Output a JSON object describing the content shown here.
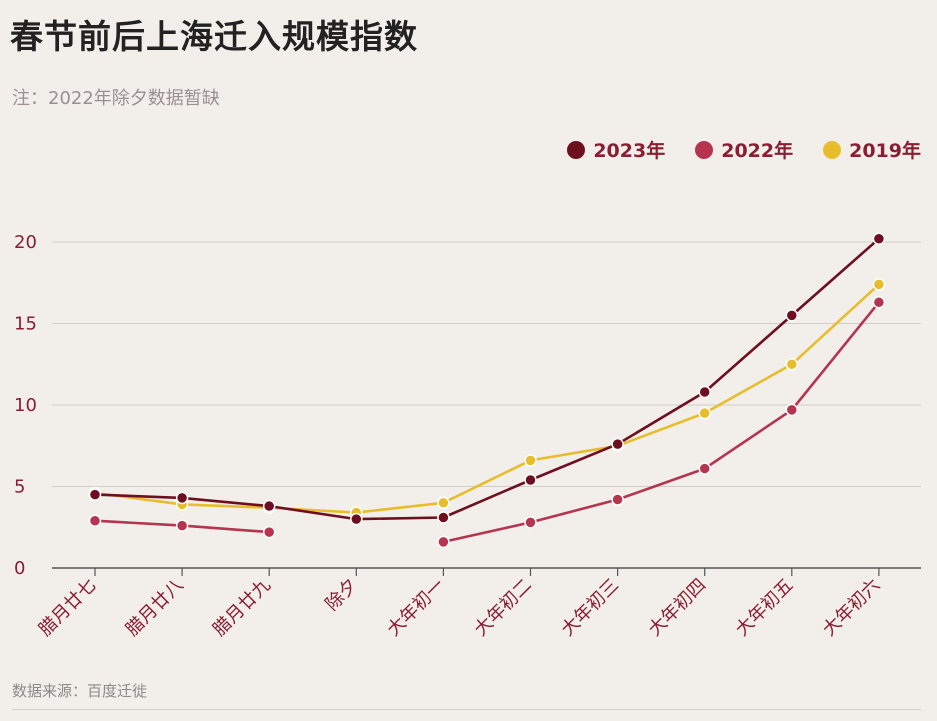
{
  "header": {
    "title": "春节前后上海迁入规模指数",
    "subtitle": "注：2022年除夕数据暂缺"
  },
  "footer": {
    "source": "数据来源：百度迁徙"
  },
  "colors": {
    "background": "#f2efeb",
    "label": "#8a1e32"
  },
  "chart_data": {
    "type": "line",
    "categories": [
      "腊月廿七",
      "腊月廿八",
      "腊月廿九",
      "除夕",
      "大年初一",
      "大年初二",
      "大年初三",
      "大年初四",
      "大年初五",
      "大年初六"
    ],
    "ylim": [
      0,
      20
    ],
    "yticks": [
      0,
      5,
      10,
      15,
      20
    ],
    "grid": "horizontal",
    "legend_position": "top-right",
    "series": [
      {
        "name": "2023年",
        "color": "#6e0f1f",
        "values": [
          4.5,
          4.3,
          3.8,
          3.0,
          3.1,
          5.4,
          7.6,
          10.8,
          15.5,
          20.2
        ]
      },
      {
        "name": "2022年",
        "color": "#b5344f",
        "values": [
          2.9,
          2.6,
          2.2,
          null,
          1.6,
          2.8,
          4.2,
          6.1,
          9.7,
          16.3
        ]
      },
      {
        "name": "2019年",
        "color": "#e8bd2c",
        "values": [
          4.6,
          3.9,
          3.7,
          3.4,
          4.0,
          6.6,
          7.5,
          9.5,
          12.5,
          17.4
        ]
      }
    ]
  }
}
